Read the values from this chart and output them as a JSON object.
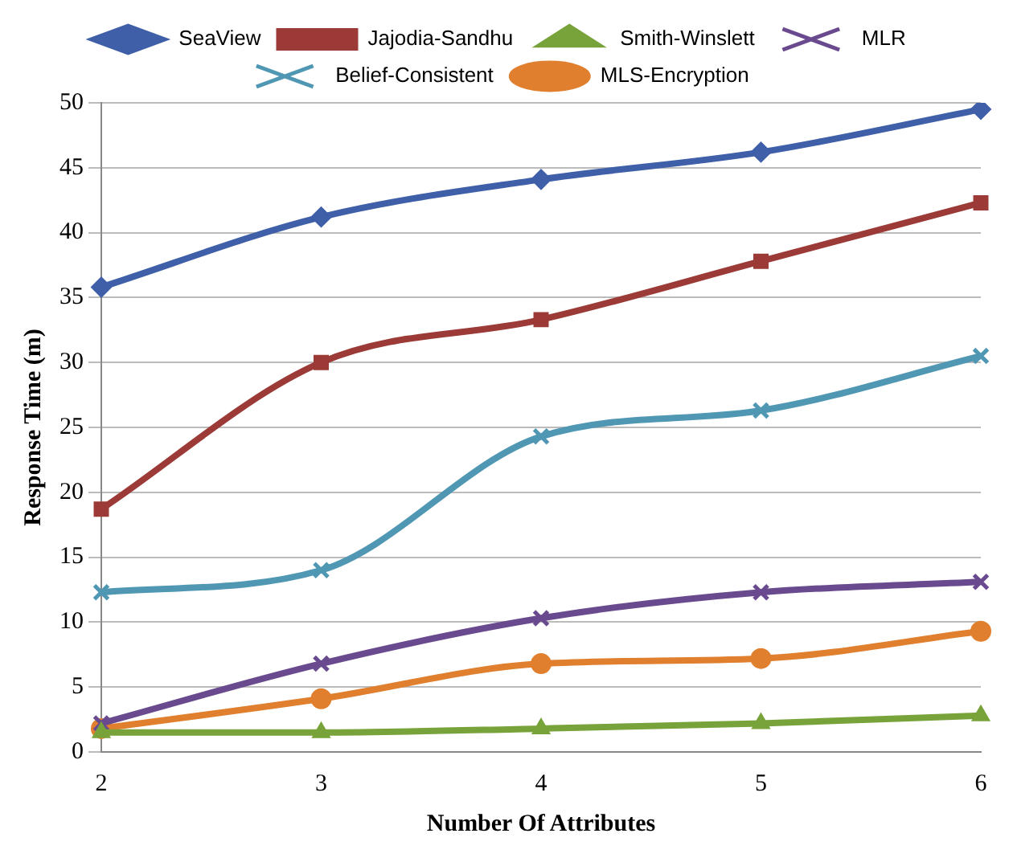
{
  "chart_data": {
    "type": "line",
    "xlabel": "Number Of Attributes",
    "ylabel": "Response Time (m)",
    "categories": [
      "2",
      "3",
      "4",
      "5",
      "6"
    ],
    "ylim": [
      0,
      50
    ],
    "yticks": [
      0,
      5,
      10,
      15,
      20,
      25,
      30,
      35,
      40,
      45,
      50
    ],
    "grid": "y",
    "legend": "top",
    "series": [
      {
        "name": "SeaView",
        "color": "#3f5fa8",
        "marker": "diamond",
        "values": [
          35.8,
          41.2,
          44.1,
          46.2,
          49.5
        ]
      },
      {
        "name": "Jajodia-Sandhu",
        "color": "#9b3a36",
        "marker": "square",
        "values": [
          18.7,
          30.0,
          33.3,
          37.8,
          42.3
        ]
      },
      {
        "name": "Smith-Winslett",
        "color": "#78a33a",
        "marker": "triangle",
        "values": [
          1.5,
          1.5,
          1.8,
          2.2,
          2.8
        ]
      },
      {
        "name": "MLR",
        "color": "#6a4a8e",
        "marker": "cross",
        "values": [
          2.2,
          6.8,
          10.3,
          12.3,
          13.1
        ]
      },
      {
        "name": "Belief-Consistent",
        "color": "#4f97b3",
        "marker": "cross",
        "values": [
          12.3,
          14.0,
          24.3,
          26.3,
          30.5
        ]
      },
      {
        "name": "MLS-Encryption",
        "color": "#e07f2e",
        "marker": "circle",
        "values": [
          1.8,
          4.1,
          6.8,
          7.2,
          9.3
        ]
      }
    ]
  }
}
